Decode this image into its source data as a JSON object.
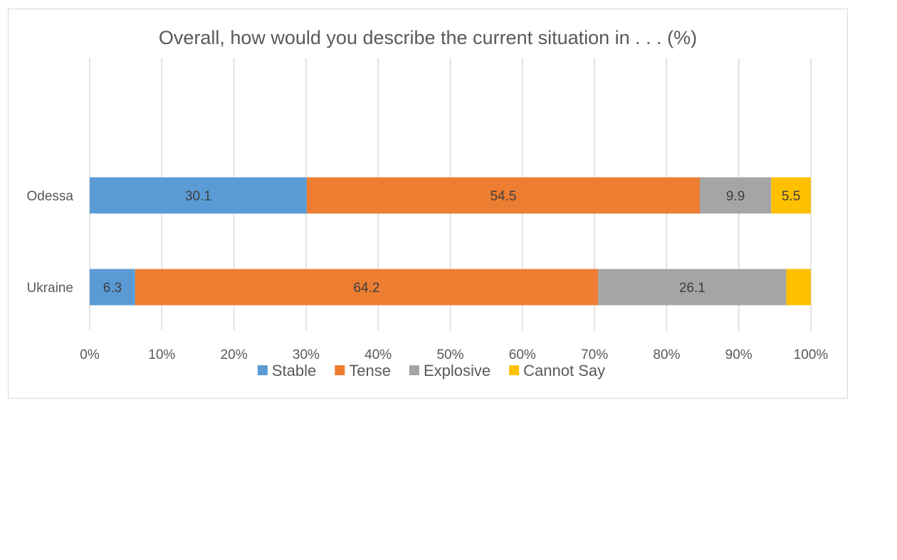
{
  "chart_data": {
    "type": "bar",
    "orientation": "horizontal",
    "stacked": true,
    "title": "Overall, how would you describe the current situation in . . . (%)",
    "categories": [
      "Odessa",
      "Ukraine"
    ],
    "series": [
      {
        "name": "Stable",
        "color": "#5b9bd5",
        "values": [
          30.1,
          6.3
        ],
        "labels": [
          "30.1",
          "6.3"
        ]
      },
      {
        "name": "Tense",
        "color": "#ed7d31",
        "values": [
          54.5,
          64.2
        ],
        "labels": [
          "54.5",
          "64.2"
        ]
      },
      {
        "name": "Explosive",
        "color": "#a5a5a5",
        "values": [
          9.9,
          26.1
        ],
        "labels": [
          "9.9",
          "26.1"
        ]
      },
      {
        "name": "Cannot Say",
        "color": "#ffc000",
        "values": [
          5.5,
          3.4
        ],
        "labels": [
          "5.5",
          ""
        ]
      }
    ],
    "xaxis": {
      "ticks": [
        "0%",
        "10%",
        "20%",
        "30%",
        "40%",
        "50%",
        "60%",
        "70%",
        "80%",
        "90%",
        "100%"
      ],
      "range": [
        0,
        100
      ]
    },
    "grid": true,
    "legend_position": "bottom"
  }
}
